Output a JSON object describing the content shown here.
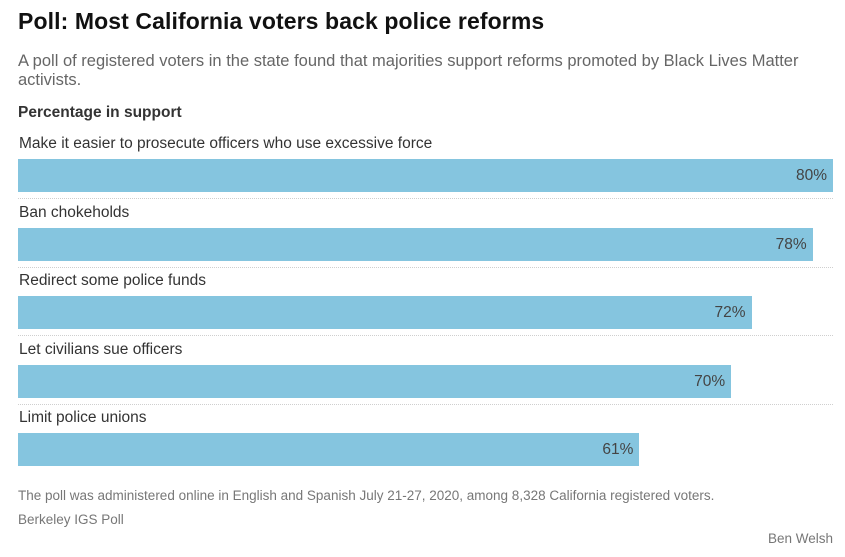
{
  "header": {
    "title": "Poll: Most California voters back police reforms",
    "subtitle": "A poll of registered voters in the state found that majorities support reforms promoted by Black Lives Matter activists."
  },
  "footer": {
    "note": "The poll was administered online in English and Spanish July 21-27, 2020, among 8,328 California registered voters.",
    "source": "Berkeley IGS Poll",
    "credit": "Ben Welsh"
  },
  "colors": {
    "bar": "#85c5df"
  },
  "chart_data": {
    "type": "bar",
    "orientation": "horizontal",
    "title": "Poll: Most California voters back police reforms",
    "ylabel": "Percentage in support",
    "xlim": [
      0,
      80
    ],
    "grid": false,
    "categories": [
      "Make it easier to prosecute officers who use excessive force",
      "Ban chokeholds",
      "Redirect some police funds",
      "Let civilians sue officers",
      "Limit police unions"
    ],
    "values": [
      80,
      78,
      72,
      70,
      61
    ],
    "value_labels": [
      "80%",
      "78%",
      "72%",
      "70%",
      "61%"
    ]
  }
}
